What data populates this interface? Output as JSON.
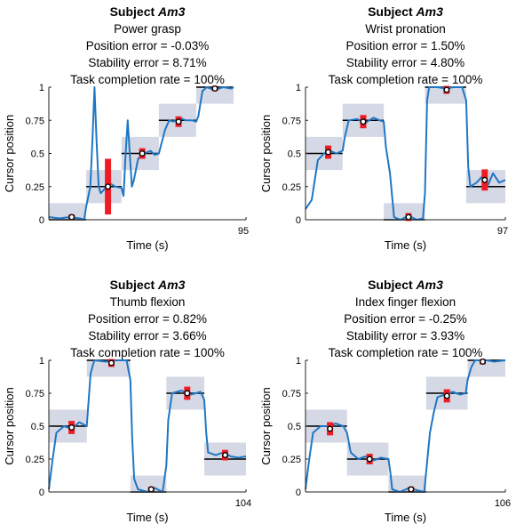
{
  "figure": {
    "subject_prefix": "Subject",
    "subject_id": "Am3",
    "ylabel": "Cursor position",
    "xlabel": "Time (s)",
    "y_ticks": [
      "0",
      "0.25",
      "0.5",
      "0.75",
      "1"
    ],
    "colors": {
      "trace": "#1f77c4",
      "target_box": "#d5d9e6",
      "target_line": "#000000",
      "error_bar": "#ee1c25",
      "marker_fill": "#ffffff",
      "marker_edge": "#000000"
    }
  },
  "chart_data": [
    {
      "type": "line",
      "title": "Subject Am3",
      "task": "Power grasp",
      "position_error": "Position error = -0.03%",
      "stability_error": "Stability error = 8.71%",
      "completion_rate": "Task completion rate = 100%",
      "xlabel": "Time (s)",
      "ylabel": "Cursor position",
      "x_end_label": "95",
      "xlim": [
        0,
        95
      ],
      "ylim": [
        0,
        1
      ],
      "targets": [
        {
          "start": 0,
          "end": 18,
          "level": 0,
          "mean": 0.02,
          "err": 0.02,
          "marker_t": 11
        },
        {
          "start": 18,
          "end": 35,
          "level": 0.25,
          "mean": 0.25,
          "err": 0.21,
          "marker_t": 28.5
        },
        {
          "start": 35,
          "end": 53,
          "level": 0.5,
          "mean": 0.5,
          "err": 0.04,
          "marker_t": 45
        },
        {
          "start": 53,
          "end": 71,
          "level": 0.75,
          "mean": 0.74,
          "err": 0.04,
          "marker_t": 62.5
        },
        {
          "start": 71,
          "end": 89,
          "level": 1,
          "mean": 0.99,
          "err": 0.02,
          "marker_t": 80
        }
      ],
      "trace": [
        [
          0,
          0.02
        ],
        [
          5,
          0.01
        ],
        [
          10,
          0.02
        ],
        [
          15,
          0.01
        ],
        [
          17,
          0.0
        ],
        [
          18,
          0.1
        ],
        [
          20,
          0.25
        ],
        [
          21,
          0.6
        ],
        [
          22,
          1.0
        ],
        [
          23,
          0.6
        ],
        [
          24,
          0.25
        ],
        [
          25,
          0.2
        ],
        [
          28,
          0.25
        ],
        [
          30,
          0.27
        ],
        [
          32,
          0.25
        ],
        [
          35,
          0.24
        ],
        [
          36,
          0.18
        ],
        [
          37,
          0.5
        ],
        [
          38,
          0.75
        ],
        [
          39,
          0.5
        ],
        [
          40,
          0.25
        ],
        [
          41,
          0.3
        ],
        [
          43,
          0.46
        ],
        [
          46,
          0.5
        ],
        [
          49,
          0.52
        ],
        [
          51,
          0.49
        ],
        [
          53,
          0.5
        ],
        [
          54,
          0.56
        ],
        [
          56,
          0.68
        ],
        [
          58,
          0.75
        ],
        [
          60,
          0.74
        ],
        [
          63,
          0.77
        ],
        [
          66,
          0.75
        ],
        [
          69,
          0.75
        ],
        [
          71,
          0.74
        ],
        [
          72,
          0.78
        ],
        [
          74,
          0.97
        ],
        [
          76,
          1.0
        ],
        [
          80,
          0.98
        ],
        [
          84,
          1.0
        ],
        [
          88,
          0.99
        ],
        [
          89,
          1.0
        ]
      ]
    },
    {
      "type": "line",
      "title": "Subject Am3",
      "task": "Wrist pronation",
      "position_error": "Position error = 1.50%",
      "stability_error": "Stability error = 4.80%",
      "completion_rate": "Task completion rate = 100%",
      "xlabel": "Time (s)",
      "ylabel": "Cursor position",
      "x_end_label": "97",
      "xlim": [
        0,
        97
      ],
      "ylim": [
        0,
        1
      ],
      "targets": [
        {
          "start": 0,
          "end": 18,
          "level": 0.5,
          "mean": 0.51,
          "err": 0.05,
          "marker_t": 11
        },
        {
          "start": 18,
          "end": 38,
          "level": 0.75,
          "mean": 0.74,
          "err": 0.05,
          "marker_t": 28
        },
        {
          "start": 38,
          "end": 58,
          "level": 0,
          "mean": 0.02,
          "err": 0.03,
          "marker_t": 50
        },
        {
          "start": 58,
          "end": 78,
          "level": 1,
          "mean": 0.98,
          "err": 0.03,
          "marker_t": 68.5
        },
        {
          "start": 78,
          "end": 97,
          "level": 0.25,
          "mean": 0.3,
          "err": 0.08,
          "marker_t": 87
        }
      ],
      "trace": [
        [
          0,
          0.08
        ],
        [
          3,
          0.15
        ],
        [
          6,
          0.45
        ],
        [
          9,
          0.5
        ],
        [
          12,
          0.52
        ],
        [
          15,
          0.5
        ],
        [
          18,
          0.52
        ],
        [
          19,
          0.62
        ],
        [
          21,
          0.75
        ],
        [
          25,
          0.76
        ],
        [
          29,
          0.73
        ],
        [
          33,
          0.77
        ],
        [
          36,
          0.75
        ],
        [
          38,
          0.74
        ],
        [
          39,
          0.55
        ],
        [
          40,
          0.45
        ],
        [
          41,
          0.35
        ],
        [
          43,
          0.02
        ],
        [
          46,
          0.0
        ],
        [
          50,
          0.03
        ],
        [
          54,
          0.0
        ],
        [
          57,
          0.01
        ],
        [
          58,
          0.2
        ],
        [
          59,
          0.9
        ],
        [
          60,
          1.0
        ],
        [
          64,
          1.0
        ],
        [
          68,
          0.99
        ],
        [
          72,
          1.0
        ],
        [
          76,
          1.0
        ],
        [
          78,
          0.9
        ],
        [
          79,
          0.4
        ],
        [
          80,
          0.25
        ],
        [
          83,
          0.28
        ],
        [
          86,
          0.33
        ],
        [
          88,
          0.24
        ],
        [
          91,
          0.35
        ],
        [
          94,
          0.28
        ],
        [
          97,
          0.3
        ]
      ]
    },
    {
      "type": "line",
      "title": "Subject Am3",
      "task": "Thumb flexion",
      "position_error": "Position error = 0.82%",
      "stability_error": "Stability error = 3.66%",
      "completion_rate": "Task completion rate = 100%",
      "xlabel": "Time (s)",
      "ylabel": "Cursor position",
      "x_end_label": "104",
      "xlim": [
        0,
        104
      ],
      "ylim": [
        0,
        1
      ],
      "targets": [
        {
          "start": 0,
          "end": 20,
          "level": 0.5,
          "mean": 0.49,
          "err": 0.05,
          "marker_t": 12
        },
        {
          "start": 20,
          "end": 43,
          "level": 1,
          "mean": 0.98,
          "err": 0.03,
          "marker_t": 33
        },
        {
          "start": 43,
          "end": 62,
          "level": 0,
          "mean": 0.02,
          "err": 0.02,
          "marker_t": 54
        },
        {
          "start": 62,
          "end": 82,
          "level": 0.75,
          "mean": 0.75,
          "err": 0.05,
          "marker_t": 73
        },
        {
          "start": 82,
          "end": 104,
          "level": 0.25,
          "mean": 0.28,
          "err": 0.04,
          "marker_t": 93
        }
      ],
      "trace": [
        [
          0,
          0.02
        ],
        [
          2,
          0.25
        ],
        [
          4,
          0.45
        ],
        [
          8,
          0.5
        ],
        [
          12,
          0.48
        ],
        [
          16,
          0.53
        ],
        [
          20,
          0.5
        ],
        [
          22,
          0.9
        ],
        [
          24,
          1.0
        ],
        [
          30,
          0.99
        ],
        [
          36,
          1.0
        ],
        [
          41,
          1.0
        ],
        [
          43,
          0.85
        ],
        [
          44,
          0.4
        ],
        [
          45,
          0.1
        ],
        [
          47,
          0.02
        ],
        [
          52,
          0.0
        ],
        [
          56,
          0.03
        ],
        [
          60,
          0.0
        ],
        [
          62,
          0.2
        ],
        [
          63,
          0.55
        ],
        [
          65,
          0.75
        ],
        [
          70,
          0.77
        ],
        [
          75,
          0.74
        ],
        [
          80,
          0.76
        ],
        [
          82,
          0.7
        ],
        [
          83,
          0.45
        ],
        [
          84,
          0.3
        ],
        [
          88,
          0.28
        ],
        [
          92,
          0.3
        ],
        [
          96,
          0.27
        ],
        [
          100,
          0.26
        ],
        [
          104,
          0.27
        ]
      ]
    },
    {
      "type": "line",
      "title": "Subject Am3",
      "task": "Index finger flexion",
      "position_error": "Position error = -0.25%",
      "stability_error": "Stability error = 3.93%",
      "completion_rate": "Task completion rate = 100%",
      "xlabel": "Time (s)",
      "ylabel": "Cursor position",
      "x_end_label": "106",
      "xlim": [
        0,
        106
      ],
      "ylim": [
        0,
        1
      ],
      "targets": [
        {
          "start": 0,
          "end": 22,
          "level": 0.5,
          "mean": 0.48,
          "err": 0.05,
          "marker_t": 13
        },
        {
          "start": 22,
          "end": 44,
          "level": 0.25,
          "mean": 0.25,
          "err": 0.04,
          "marker_t": 34
        },
        {
          "start": 44,
          "end": 64,
          "level": 0,
          "mean": 0.02,
          "err": 0.02,
          "marker_t": 56
        },
        {
          "start": 64,
          "end": 86,
          "level": 0.75,
          "mean": 0.73,
          "err": 0.05,
          "marker_t": 75
        },
        {
          "start": 86,
          "end": 106,
          "level": 1,
          "mean": 0.99,
          "err": 0.02,
          "marker_t": 94
        }
      ],
      "trace": [
        [
          0,
          0.02
        ],
        [
          2,
          0.25
        ],
        [
          4,
          0.45
        ],
        [
          8,
          0.5
        ],
        [
          12,
          0.5
        ],
        [
          16,
          0.52
        ],
        [
          20,
          0.5
        ],
        [
          22,
          0.45
        ],
        [
          24,
          0.3
        ],
        [
          28,
          0.25
        ],
        [
          32,
          0.27
        ],
        [
          36,
          0.24
        ],
        [
          40,
          0.26
        ],
        [
          44,
          0.25
        ],
        [
          45,
          0.15
        ],
        [
          46,
          0.02
        ],
        [
          50,
          0.0
        ],
        [
          55,
          0.03
        ],
        [
          60,
          0.01
        ],
        [
          63,
          0.0
        ],
        [
          64,
          0.15
        ],
        [
          66,
          0.45
        ],
        [
          68,
          0.6
        ],
        [
          70,
          0.72
        ],
        [
          74,
          0.74
        ],
        [
          78,
          0.76
        ],
        [
          82,
          0.74
        ],
        [
          85,
          0.75
        ],
        [
          86,
          0.85
        ],
        [
          88,
          0.95
        ],
        [
          90,
          1.0
        ],
        [
          96,
          1.0
        ],
        [
          100,
          0.99
        ],
        [
          106,
          1.0
        ]
      ]
    }
  ]
}
